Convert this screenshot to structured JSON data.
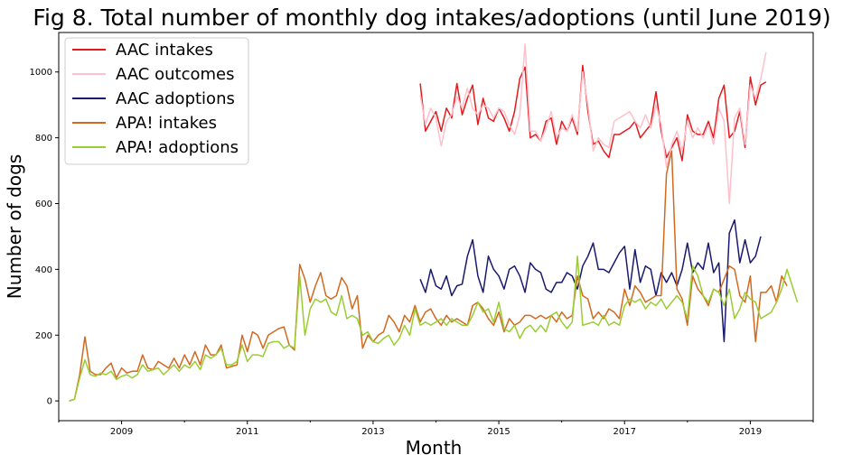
{
  "chart_data": {
    "type": "line",
    "title": "Fig 8. Total number of monthly dog intakes/adoptions (until June 2019)",
    "xlabel": "Month",
    "ylabel": "Number of dogs",
    "xlim": [
      "2008-01",
      "2020-01"
    ],
    "ylim": [
      -60,
      1120
    ],
    "x_ticks": [
      "2009",
      "2011",
      "2013",
      "2015",
      "2017",
      "2019"
    ],
    "y_ticks": [
      0,
      200,
      400,
      600,
      800,
      1000
    ],
    "grid": false,
    "legend_position": "top-left",
    "series": [
      {
        "name": "AAC intakes",
        "color": "#e41a1c",
        "start": "2013-10",
        "values": [
          965,
          820,
          850,
          880,
          820,
          890,
          860,
          965,
          870,
          920,
          960,
          840,
          920,
          860,
          850,
          890,
          860,
          820,
          880,
          980,
          1015,
          800,
          810,
          790,
          850,
          860,
          780,
          850,
          820,
          860,
          810,
          1020,
          880,
          780,
          790,
          760,
          740,
          810,
          810,
          820,
          830,
          850,
          800,
          820,
          840,
          940,
          820,
          740,
          770,
          800,
          730,
          870,
          820,
          810,
          810,
          850,
          800,
          920,
          960,
          800,
          820,
          880,
          770,
          985,
          900,
          960,
          970
        ]
      },
      {
        "name": "AAC outcomes",
        "color": "#ffc0cb",
        "start": "2013-10",
        "values": [
          930,
          840,
          890,
          860,
          775,
          850,
          870,
          925,
          890,
          950,
          890,
          870,
          900,
          890,
          860,
          890,
          880,
          840,
          810,
          870,
          1085,
          820,
          820,
          790,
          830,
          880,
          800,
          830,
          820,
          870,
          820,
          1000,
          900,
          760,
          800,
          780,
          770,
          850,
          860,
          870,
          880,
          850,
          830,
          870,
          830,
          900,
          840,
          710,
          780,
          820,
          760,
          850,
          800,
          830,
          800,
          840,
          780,
          890,
          850,
          600,
          860,
          890,
          780,
          960,
          920,
          980,
          1060
        ]
      },
      {
        "name": "AAC adoptions",
        "color": "#191970",
        "start": "2013-10",
        "values": [
          370,
          330,
          400,
          350,
          340,
          380,
          320,
          350,
          355,
          440,
          490,
          380,
          330,
          440,
          400,
          380,
          340,
          400,
          410,
          380,
          330,
          420,
          400,
          390,
          340,
          330,
          360,
          360,
          390,
          380,
          340,
          410,
          440,
          480,
          400,
          400,
          390,
          420,
          450,
          470,
          340,
          460,
          360,
          410,
          400,
          320,
          390,
          360,
          390,
          350,
          400,
          480,
          390,
          420,
          400,
          480,
          390,
          420,
          180,
          510,
          550,
          420,
          490,
          420,
          440,
          500
        ]
      },
      {
        "name": "APA! intakes",
        "color": "#d2691e",
        "start": "2008-03",
        "values": [
          0,
          5,
          80,
          195,
          90,
          80,
          80,
          100,
          115,
          70,
          100,
          85,
          90,
          90,
          140,
          100,
          95,
          120,
          110,
          100,
          130,
          100,
          140,
          110,
          150,
          110,
          170,
          140,
          140,
          170,
          100,
          105,
          110,
          200,
          150,
          210,
          200,
          160,
          200,
          210,
          220,
          225,
          170,
          155,
          415,
          370,
          300,
          350,
          390,
          320,
          310,
          320,
          375,
          350,
          280,
          320,
          160,
          200,
          180,
          200,
          210,
          260,
          240,
          210,
          260,
          240,
          290,
          240,
          270,
          280,
          250,
          230,
          260,
          240,
          250,
          240,
          230,
          290,
          300,
          280,
          250,
          230,
          270,
          210,
          250,
          230,
          240,
          260,
          260,
          250,
          260,
          250,
          260,
          240,
          270,
          250,
          260,
          380,
          320,
          310,
          250,
          270,
          250,
          280,
          270,
          250,
          340,
          290,
          350,
          330,
          300,
          310,
          320,
          320,
          690,
          760,
          340,
          310,
          230,
          380,
          340,
          320,
          290,
          340,
          330,
          370,
          410,
          400,
          320,
          300,
          380,
          180,
          330,
          330,
          350,
          300,
          380,
          350
        ]
      },
      {
        "name": "APA! adoptions",
        "color": "#9acd32",
        "start": "2008-03",
        "values": [
          0,
          5,
          70,
          125,
          80,
          75,
          85,
          80,
          90,
          65,
          75,
          80,
          70,
          80,
          110,
          90,
          95,
          100,
          80,
          95,
          110,
          90,
          110,
          100,
          120,
          95,
          140,
          130,
          140,
          160,
          110,
          110,
          120,
          170,
          120,
          140,
          140,
          135,
          175,
          180,
          180,
          160,
          170,
          160,
          380,
          200,
          280,
          310,
          300,
          310,
          270,
          260,
          320,
          250,
          260,
          250,
          200,
          210,
          180,
          175,
          190,
          200,
          170,
          190,
          230,
          200,
          280,
          230,
          240,
          230,
          240,
          250,
          230,
          250,
          240,
          230,
          230,
          260,
          300,
          270,
          280,
          240,
          300,
          220,
          210,
          230,
          190,
          220,
          230,
          210,
          230,
          210,
          260,
          270,
          240,
          220,
          240,
          440,
          230,
          235,
          240,
          230,
          260,
          230,
          240,
          230,
          290,
          310,
          300,
          310,
          280,
          300,
          290,
          310,
          280,
          300,
          320,
          300,
          250,
          410,
          380,
          320,
          300,
          340,
          330,
          290,
          340,
          250,
          280,
          330,
          310,
          300,
          250,
          260,
          270,
          300,
          340,
          400,
          350,
          300
        ]
      }
    ]
  }
}
